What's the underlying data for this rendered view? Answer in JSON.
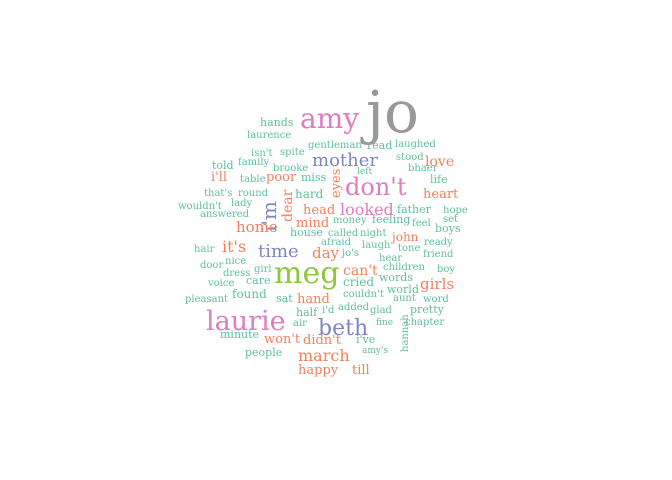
{
  "chart_data": {
    "type": "wordcloud",
    "palette": {
      "gray": "#999999",
      "pink": "#e07cc0",
      "blue": "#7f86bf",
      "orange": "#f4805c",
      "green": "#8dc63f",
      "teal": "#5fbf9a"
    },
    "words": [
      {
        "text": "jo",
        "color": "gray"
      },
      {
        "text": "amy",
        "color": "pink"
      },
      {
        "text": "meg",
        "color": "green"
      },
      {
        "text": "laurie",
        "color": "pink"
      },
      {
        "text": "don't",
        "color": "pink"
      },
      {
        "text": "beth",
        "color": "blue"
      },
      {
        "text": "mother",
        "color": "blue"
      },
      {
        "text": "i'm",
        "color": "blue"
      },
      {
        "text": "time",
        "color": "blue"
      },
      {
        "text": "looked",
        "color": "pink"
      },
      {
        "text": "march",
        "color": "orange"
      },
      {
        "text": "it's",
        "color": "orange"
      },
      {
        "text": "home",
        "color": "orange"
      },
      {
        "text": "girls",
        "color": "orange"
      },
      {
        "text": "dear",
        "color": "orange"
      },
      {
        "text": "eyes",
        "color": "orange"
      },
      {
        "text": "day",
        "color": "orange"
      },
      {
        "text": "can't",
        "color": "orange"
      },
      {
        "text": "love",
        "color": "orange"
      },
      {
        "text": "heart",
        "color": "orange"
      },
      {
        "text": "head",
        "color": "orange"
      },
      {
        "text": "mind",
        "color": "orange"
      },
      {
        "text": "i'll",
        "color": "orange"
      },
      {
        "text": "poor",
        "color": "orange"
      },
      {
        "text": "john",
        "color": "orange"
      },
      {
        "text": "hand",
        "color": "orange"
      },
      {
        "text": "won't",
        "color": "orange"
      },
      {
        "text": "didn't",
        "color": "orange"
      },
      {
        "text": "happy",
        "color": "orange"
      },
      {
        "text": "till",
        "color": "orange"
      },
      {
        "text": "hands",
        "color": "teal"
      },
      {
        "text": "laurence",
        "color": "teal"
      },
      {
        "text": "gentleman",
        "color": "teal"
      },
      {
        "text": "read",
        "color": "teal"
      },
      {
        "text": "laughed",
        "color": "teal"
      },
      {
        "text": "isn't",
        "color": "teal"
      },
      {
        "text": "spite",
        "color": "teal"
      },
      {
        "text": "stood",
        "color": "teal"
      },
      {
        "text": "told",
        "color": "teal"
      },
      {
        "text": "family",
        "color": "teal"
      },
      {
        "text": "brooke",
        "color": "teal"
      },
      {
        "text": "left",
        "color": "teal"
      },
      {
        "text": "bhaer",
        "color": "teal"
      },
      {
        "text": "table",
        "color": "teal"
      },
      {
        "text": "miss",
        "color": "teal"
      },
      {
        "text": "life",
        "color": "teal"
      },
      {
        "text": "that's",
        "color": "teal"
      },
      {
        "text": "round",
        "color": "teal"
      },
      {
        "text": "hard",
        "color": "teal"
      },
      {
        "text": "wouldn't",
        "color": "teal"
      },
      {
        "text": "lady",
        "color": "teal"
      },
      {
        "text": "father",
        "color": "teal"
      },
      {
        "text": "hope",
        "color": "teal"
      },
      {
        "text": "answered",
        "color": "teal"
      },
      {
        "text": "money",
        "color": "teal"
      },
      {
        "text": "feeling",
        "color": "teal"
      },
      {
        "text": "feel",
        "color": "teal"
      },
      {
        "text": "set",
        "color": "teal"
      },
      {
        "text": "boys",
        "color": "teal"
      },
      {
        "text": "house",
        "color": "teal"
      },
      {
        "text": "called",
        "color": "teal"
      },
      {
        "text": "night",
        "color": "teal"
      },
      {
        "text": "afraid",
        "color": "teal"
      },
      {
        "text": "laugh",
        "color": "teal"
      },
      {
        "text": "tone",
        "color": "teal"
      },
      {
        "text": "ready",
        "color": "teal"
      },
      {
        "text": "hair",
        "color": "teal"
      },
      {
        "text": "jo's",
        "color": "teal"
      },
      {
        "text": "friend",
        "color": "teal"
      },
      {
        "text": "hear",
        "color": "teal"
      },
      {
        "text": "door",
        "color": "teal"
      },
      {
        "text": "nice",
        "color": "teal"
      },
      {
        "text": "children",
        "color": "teal"
      },
      {
        "text": "boy",
        "color": "teal"
      },
      {
        "text": "dress",
        "color": "teal"
      },
      {
        "text": "girl",
        "color": "teal"
      },
      {
        "text": "voice",
        "color": "teal"
      },
      {
        "text": "care",
        "color": "teal"
      },
      {
        "text": "cried",
        "color": "teal"
      },
      {
        "text": "words",
        "color": "teal"
      },
      {
        "text": "world",
        "color": "teal"
      },
      {
        "text": "couldn't",
        "color": "teal"
      },
      {
        "text": "aunt",
        "color": "teal"
      },
      {
        "text": "word",
        "color": "teal"
      },
      {
        "text": "pleasant",
        "color": "teal"
      },
      {
        "text": "found",
        "color": "teal"
      },
      {
        "text": "sat",
        "color": "teal"
      },
      {
        "text": "added",
        "color": "teal"
      },
      {
        "text": "glad",
        "color": "teal"
      },
      {
        "text": "pretty",
        "color": "teal"
      },
      {
        "text": "half",
        "color": "teal"
      },
      {
        "text": "i'd",
        "color": "teal"
      },
      {
        "text": "air",
        "color": "teal"
      },
      {
        "text": "fine",
        "color": "teal"
      },
      {
        "text": "chapter",
        "color": "teal"
      },
      {
        "text": "minute",
        "color": "teal"
      },
      {
        "text": "i've",
        "color": "teal"
      },
      {
        "text": "hannah",
        "color": "teal"
      },
      {
        "text": "people",
        "color": "teal"
      },
      {
        "text": "amy's",
        "color": "teal"
      }
    ]
  }
}
